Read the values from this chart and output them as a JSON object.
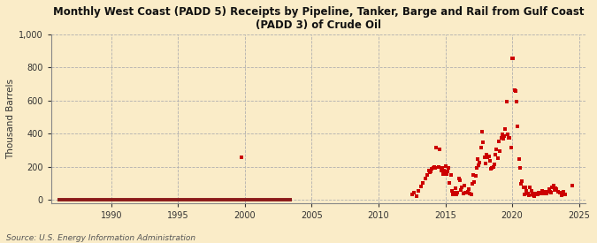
{
  "title": "Monthly West Coast (PADD 5) Receipts by Pipeline, Tanker, Barge and Rail from Gulf Coast\n(PADD 3) of Crude Oil",
  "ylabel": "Thousand Barrels",
  "source": "Source: U.S. Energy Information Administration",
  "background_color": "#faecc8",
  "ylim": [
    -20,
    1000
  ],
  "yticks": [
    0,
    200,
    400,
    600,
    800,
    1000
  ],
  "xlim": [
    1985.5,
    2025.5
  ],
  "xticks": [
    1990,
    1995,
    2000,
    2005,
    2010,
    2015,
    2020,
    2025
  ],
  "line_color": "#8b1a1a",
  "scatter_color": "#cc0000",
  "line_x_start": 1986.0,
  "line_x_end": 2003.5,
  "scatter_data_x": [
    1999.75,
    2012.5,
    2012.67,
    2012.83,
    2013.0,
    2013.17,
    2013.33,
    2013.5,
    2013.67,
    2013.75,
    2013.83,
    2013.92,
    2014.0,
    2014.08,
    2014.17,
    2014.25,
    2014.33,
    2014.5,
    2014.58,
    2014.67,
    2014.75,
    2014.83,
    2014.92,
    2015.0,
    2015.08,
    2015.17,
    2015.25,
    2015.33,
    2015.42,
    2015.5,
    2015.58,
    2015.67,
    2015.75,
    2015.83,
    2015.92,
    2016.0,
    2016.08,
    2016.17,
    2016.25,
    2016.33,
    2016.42,
    2016.5,
    2016.58,
    2016.67,
    2016.75,
    2016.83,
    2016.92,
    2017.0,
    2017.08,
    2017.17,
    2017.25,
    2017.33,
    2017.42,
    2017.5,
    2017.58,
    2017.67,
    2017.75,
    2017.83,
    2017.92,
    2018.0,
    2018.08,
    2018.17,
    2018.25,
    2018.33,
    2018.42,
    2018.5,
    2018.58,
    2018.67,
    2018.75,
    2018.83,
    2018.92,
    2019.0,
    2019.08,
    2019.17,
    2019.25,
    2019.33,
    2019.42,
    2019.5,
    2019.58,
    2019.67,
    2019.75,
    2019.83,
    2019.92,
    2020.0,
    2020.08,
    2020.17,
    2020.25,
    2020.33,
    2020.42,
    2020.5,
    2020.58,
    2020.67,
    2020.75,
    2020.83,
    2020.92,
    2021.0,
    2021.08,
    2021.17,
    2021.25,
    2021.33,
    2021.42,
    2021.5,
    2021.58,
    2021.67,
    2021.75,
    2021.83,
    2021.92,
    2022.0,
    2022.08,
    2022.17,
    2022.25,
    2022.33,
    2022.42,
    2022.5,
    2022.58,
    2022.67,
    2022.75,
    2022.83,
    2022.92,
    2023.0,
    2023.08,
    2023.17,
    2023.25,
    2023.33,
    2023.42,
    2023.58,
    2023.67,
    2023.83,
    2024.0,
    2024.5
  ],
  "scatter_data_y": [
    255,
    30,
    45,
    20,
    55,
    80,
    100,
    130,
    150,
    175,
    165,
    170,
    185,
    195,
    200,
    190,
    315,
    200,
    305,
    175,
    190,
    155,
    175,
    205,
    155,
    170,
    195,
    100,
    150,
    55,
    30,
    45,
    70,
    30,
    45,
    130,
    120,
    60,
    75,
    35,
    85,
    45,
    45,
    50,
    65,
    40,
    30,
    95,
    150,
    105,
    145,
    195,
    245,
    210,
    225,
    315,
    410,
    345,
    255,
    220,
    275,
    255,
    260,
    235,
    185,
    195,
    200,
    215,
    275,
    305,
    250,
    355,
    295,
    375,
    395,
    370,
    385,
    425,
    595,
    395,
    375,
    375,
    315,
    855,
    855,
    665,
    655,
    595,
    445,
    245,
    195,
    95,
    115,
    75,
    30,
    75,
    55,
    35,
    25,
    75,
    55,
    30,
    25,
    20,
    40,
    30,
    30,
    45,
    45,
    40,
    55,
    35,
    50,
    35,
    40,
    50,
    65,
    50,
    45,
    75,
    85,
    60,
    70,
    65,
    50,
    45,
    25,
    50,
    30,
    85
  ]
}
